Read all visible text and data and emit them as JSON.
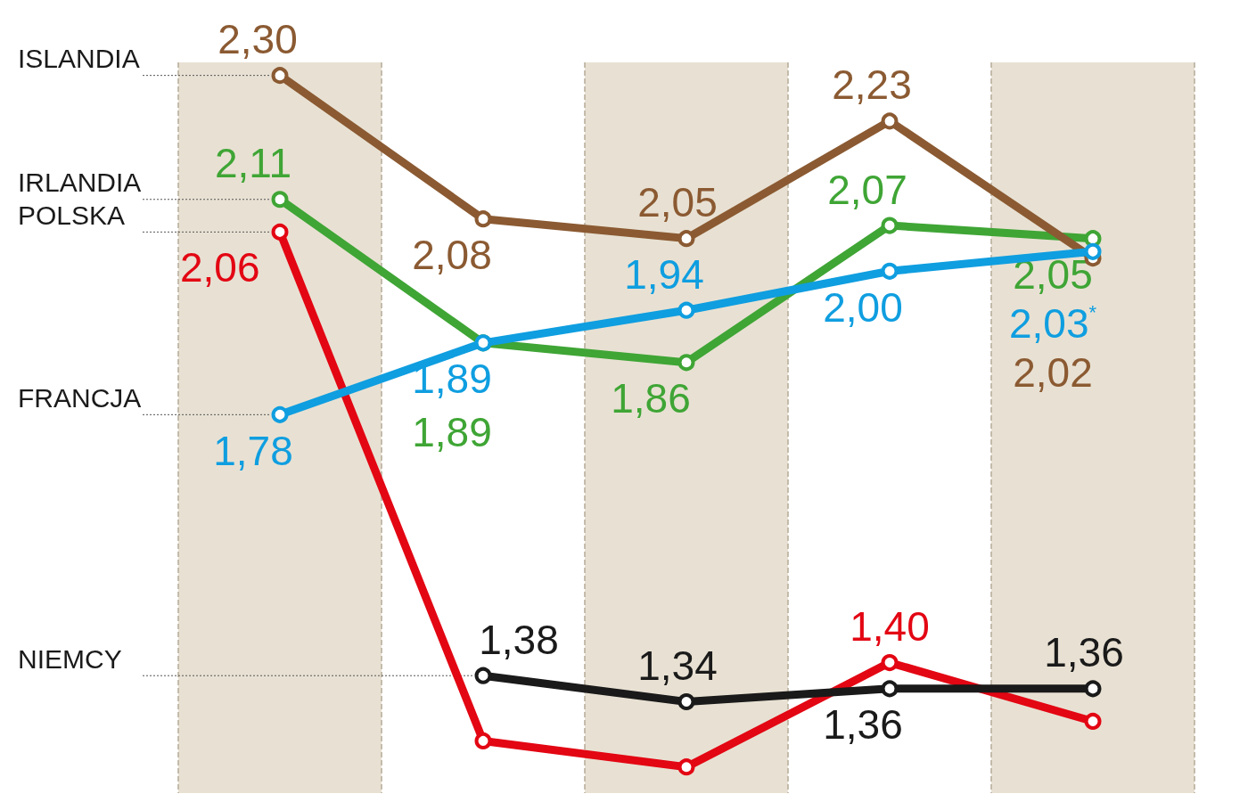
{
  "chart_data": {
    "type": "line",
    "categories": [
      null,
      null,
      null,
      null,
      null
    ],
    "series": [
      {
        "name": "ISLANDIA",
        "color": "#8b5a32",
        "values": [
          2.3,
          2.08,
          2.05,
          2.23,
          2.02
        ],
        "value_labels": [
          "2,30",
          "2,08",
          "2,05",
          "2,23",
          "2,02"
        ]
      },
      {
        "name": "IRLANDIA",
        "color": "#3fa535",
        "values": [
          2.11,
          1.89,
          1.86,
          2.07,
          2.05
        ],
        "value_labels": [
          "2,11",
          "1,89",
          "1,86",
          "2,07",
          "2,05"
        ]
      },
      {
        "name": "POLSKA",
        "color": "#e30613",
        "values": [
          2.06,
          1.28,
          1.24,
          1.4,
          1.31
        ],
        "value_labels": [
          "2,06",
          null,
          null,
          "1,40",
          null
        ]
      },
      {
        "name": "FRANCJA",
        "color": "#0f9ee0",
        "values": [
          1.78,
          1.89,
          1.94,
          2.0,
          2.03
        ],
        "value_labels": [
          "1,78",
          "1,89",
          "1,94",
          "2,00",
          "2,03$^{*}$"
        ]
      },
      {
        "name": "NIEMCY",
        "color": "#1a1a1a",
        "values": [
          null,
          1.38,
          1.34,
          1.36,
          1.36
        ],
        "value_labels": [
          null,
          "1,38",
          "1,34",
          "1,36",
          "1,36"
        ]
      }
    ],
    "ylim": [
      1.2,
      2.32
    ],
    "grid": "x",
    "legend": false,
    "marker": "circle",
    "line_style": "solid"
  }
}
